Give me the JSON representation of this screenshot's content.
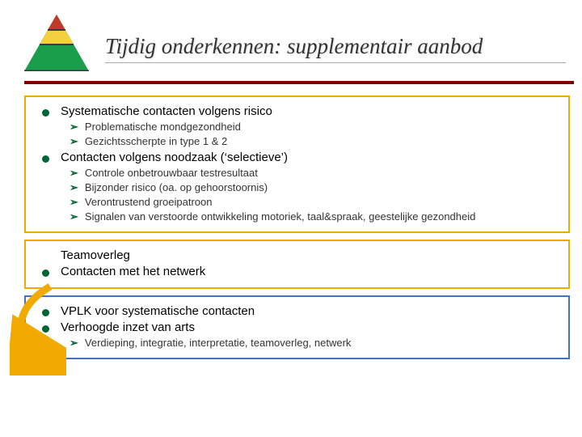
{
  "title": {
    "text_a": "Tijdig onderkennen: ",
    "text_b": "supplementair aanbod",
    "fontsize": 27,
    "color": "#333333",
    "underline_color": "#aaaaaa"
  },
  "divider_color": "#800000",
  "logo": {
    "triangle_green": "#1a9e4b",
    "triangle_yellow": "#f4d03f",
    "triangle_red": "#c0392b",
    "line_dark": "#3a3a3a"
  },
  "bullet_color": "#016533",
  "arrow_color": "#f2a900",
  "boxes": [
    {
      "border_color": "#f2a900",
      "items": [
        {
          "text": "Systematische contacten volgens risico",
          "sub": [
            {
              "text": "Problematische mondgezondheid"
            },
            {
              "text": "Gezichtsscherpte in type 1 & 2"
            }
          ]
        },
        {
          "text": "Contacten volgens noodzaak (‘selectieve’)",
          "sub": [
            {
              "text": "Controle onbetrouwbaar testresultaat"
            },
            {
              "text": "Bijzonder risico (oa. op gehoorstoornis)"
            },
            {
              "text": "Verontrustend groeipatroon"
            },
            {
              "text": "Signalen van verstoorde ontwikkeling motoriek, taal&spraak, geestelijke gezondheid"
            }
          ]
        }
      ]
    },
    {
      "border_color": "#f2a900",
      "items": [
        {
          "text": "Teamoverleg",
          "no_bullet": true,
          "sub": []
        },
        {
          "text": "Contacten met het netwerk",
          "sub": []
        }
      ]
    },
    {
      "border_color": "#4472c4",
      "items": [
        {
          "text": "VPLK voor systematische contacten",
          "sub": []
        },
        {
          "text": "Verhoogde inzet van arts",
          "sub": [
            {
              "text": " Verdieping, integratie, interpretatie, teamoverleg, netwerk"
            }
          ]
        }
      ]
    }
  ]
}
